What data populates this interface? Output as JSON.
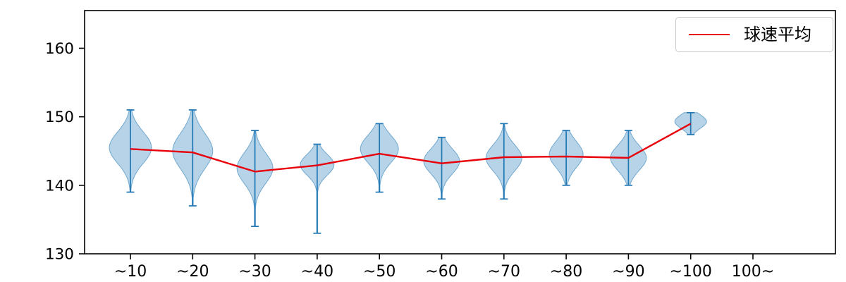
{
  "chart_data": {
    "type": "violin",
    "title": "",
    "xlabel": "",
    "ylabel": "",
    "categories": [
      "~10",
      "~20",
      "~30",
      "~40",
      "~50",
      "~60",
      "~70",
      "~80",
      "~90",
      "~100",
      "100~"
    ],
    "ylim": [
      130,
      165.5
    ],
    "yticks": [
      130,
      140,
      150,
      160
    ],
    "grid": false,
    "legend": {
      "label": "球速平均",
      "position": "upper right",
      "line_color": "#e8000b"
    },
    "series": [
      {
        "name": "球速平均",
        "type": "line",
        "color": "#e8000b",
        "values": [
          145.3,
          144.8,
          142.0,
          142.9,
          144.6,
          143.2,
          144.1,
          144.2,
          144.0,
          149.0,
          null
        ]
      }
    ],
    "violins": [
      {
        "category": "~10",
        "min": 139.0,
        "max": 151.0,
        "mode": 145.5,
        "spread": 2.3,
        "rel_width": 1.0
      },
      {
        "category": "~20",
        "min": 137.0,
        "max": 151.0,
        "mode": 145.0,
        "spread": 2.6,
        "rel_width": 0.95
      },
      {
        "category": "~30",
        "min": 134.0,
        "max": 148.0,
        "mode": 142.5,
        "spread": 2.2,
        "rel_width": 0.85
      },
      {
        "category": "~40",
        "min": 133.0,
        "max": 146.0,
        "mode": 143.0,
        "spread": 1.5,
        "rel_width": 0.8
      },
      {
        "category": "~50",
        "min": 139.0,
        "max": 149.0,
        "mode": 145.3,
        "spread": 2.0,
        "rel_width": 0.9
      },
      {
        "category": "~60",
        "min": 138.0,
        "max": 147.0,
        "mode": 143.5,
        "spread": 1.8,
        "rel_width": 0.85
      },
      {
        "category": "~70",
        "min": 138.0,
        "max": 149.0,
        "mode": 144.0,
        "spread": 1.9,
        "rel_width": 0.85
      },
      {
        "category": "~80",
        "min": 140.0,
        "max": 148.0,
        "mode": 144.5,
        "spread": 1.9,
        "rel_width": 0.8
      },
      {
        "category": "~90",
        "min": 140.0,
        "max": 148.0,
        "mode": 144.0,
        "spread": 1.8,
        "rel_width": 0.85
      },
      {
        "category": "~100",
        "min": 147.4,
        "max": 150.6,
        "mode": 149.3,
        "spread": 1.0,
        "rel_width": 0.75
      },
      {
        "category": "100~",
        "min": null,
        "max": null,
        "mode": null,
        "spread": null,
        "rel_width": 0
      }
    ],
    "colors": {
      "violin_fill": "#1f77b4",
      "violin_fill_opacity": 0.32,
      "violin_edge": "#1f77b4",
      "violin_edge_opacity": 0.55,
      "whisker": "#1f77b4",
      "mean_line": "#e8000b",
      "axis": "#000000"
    }
  }
}
